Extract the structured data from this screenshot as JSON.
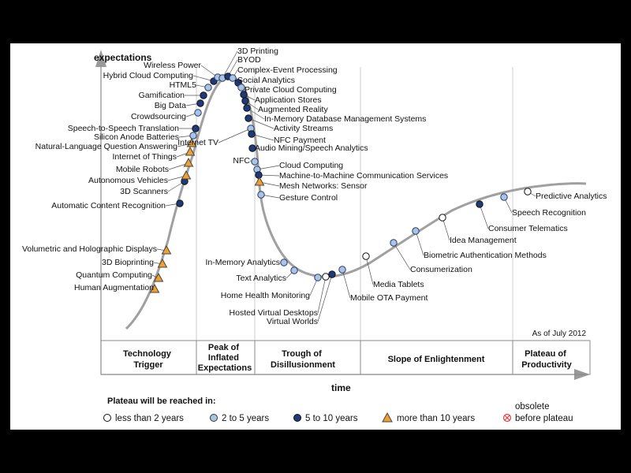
{
  "y_axis_label": "expectations",
  "x_axis_label": "time",
  "as_of": "As of July 2012",
  "phases": [
    {
      "lines": [
        "Technology",
        "Trigger"
      ]
    },
    {
      "lines": [
        "Peak of",
        "Inflated",
        "Expectations"
      ]
    },
    {
      "lines": [
        "Trough of",
        "Disillusionment"
      ]
    },
    {
      "lines": [
        "Slope of Enlightenment"
      ]
    },
    {
      "lines": [
        "Plateau of",
        "Productivity"
      ]
    }
  ],
  "legend": {
    "title": "Plateau will be reached in:",
    "items": [
      {
        "symbol": "white",
        "label": "less than 2 years"
      },
      {
        "symbol": "light",
        "label": "2 to 5 years"
      },
      {
        "symbol": "dark",
        "label": "5 to 10 years"
      },
      {
        "symbol": "triangle",
        "label": "more than 10 years"
      },
      {
        "symbol": "obsolete",
        "label": "obsolete",
        "label2": "before plateau"
      }
    ]
  },
  "colors": {
    "white": "#ffffff",
    "light": "#a9c4e4",
    "dark": "#1f3a7a",
    "triangle": "#f0a030",
    "obsolete": "#e04040",
    "curve": "#a0a0a0"
  },
  "technologies": [
    {
      "name": "Human Augmentation",
      "category": "triangle"
    },
    {
      "name": "Quantum Computing",
      "category": "triangle"
    },
    {
      "name": "3D Bioprinting",
      "category": "triangle"
    },
    {
      "name": "Volumetric and Holographic Displays",
      "category": "triangle"
    },
    {
      "name": "Automatic Content Recognition",
      "category": "dark"
    },
    {
      "name": "3D Scanners",
      "category": "dark"
    },
    {
      "name": "Autonomous Vehicles",
      "category": "triangle"
    },
    {
      "name": "Mobile Robots",
      "category": "triangle"
    },
    {
      "name": "Internet of Things",
      "category": "triangle"
    },
    {
      "name": "Natural-Language Question Answering",
      "category": "triangle"
    },
    {
      "name": "Silicon Anode Batteries",
      "category": "light"
    },
    {
      "name": "Speech-to-Speech Translation",
      "category": "dark"
    },
    {
      "name": "Crowdsourcing",
      "category": "light"
    },
    {
      "name": "Big Data",
      "category": "dark"
    },
    {
      "name": "Gamification",
      "category": "dark"
    },
    {
      "name": "HTML5",
      "category": "light"
    },
    {
      "name": "Hybrid Cloud Computing",
      "category": "dark"
    },
    {
      "name": "Wireless Power",
      "category": "light"
    },
    {
      "name": "3D Printing",
      "category": "light"
    },
    {
      "name": "BYOD",
      "category": "dark"
    },
    {
      "name": "Complex-Event Processing",
      "category": "light"
    },
    {
      "name": "Social Analytics",
      "category": "dark"
    },
    {
      "name": "Private Cloud Computing",
      "category": "light"
    },
    {
      "name": "Application Stores",
      "category": "dark"
    },
    {
      "name": "Augmented Reality",
      "category": "dark"
    },
    {
      "name": "In-Memory Database Management Systems",
      "category": "dark"
    },
    {
      "name": "Activity Streams",
      "category": "dark"
    },
    {
      "name": "Internet TV",
      "category": "light"
    },
    {
      "name": "NFC Payment",
      "category": "dark"
    },
    {
      "name": "Audio Mining/Speech Analytics",
      "category": "dark"
    },
    {
      "name": "NFC",
      "category": "light"
    },
    {
      "name": "Cloud Computing",
      "category": "light"
    },
    {
      "name": "Machine-to-Machine Communication Services",
      "category": "dark"
    },
    {
      "name": "Mesh Networks: Sensor",
      "category": "triangle"
    },
    {
      "name": "Gesture Control",
      "category": "light"
    },
    {
      "name": "In-Memory Analytics",
      "category": "light"
    },
    {
      "name": "Text Analytics",
      "category": "light"
    },
    {
      "name": "Home Health Monitoring",
      "category": "light"
    },
    {
      "name": "Hosted Virtual Desktops",
      "category": "white"
    },
    {
      "name": "Virtual Worlds",
      "category": "dark"
    },
    {
      "name": "Mobile OTA Payment",
      "category": "light"
    },
    {
      "name": "Media Tablets",
      "category": "white"
    },
    {
      "name": "Consumerization",
      "category": "light"
    },
    {
      "name": "Biometric Authentication Methods",
      "category": "light"
    },
    {
      "name": "Idea Management",
      "category": "white"
    },
    {
      "name": "Consumer Telematics",
      "category": "dark"
    },
    {
      "name": "Speech Recognition",
      "category": "light"
    },
    {
      "name": "Predictive Analytics",
      "category": "white"
    }
  ]
}
